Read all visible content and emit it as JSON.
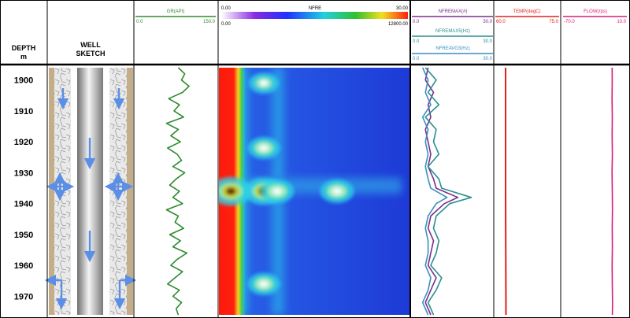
{
  "header": {
    "depth_label": "DEPTH",
    "depth_unit": "m",
    "well_label_1": "WELL",
    "well_label_2": "SKETCH"
  },
  "tracks": {
    "gr": {
      "name": "GR(API)",
      "min": "0.0",
      "max": "150.0",
      "color": "#2e8b2e"
    },
    "nfre": {
      "name": "NFRE",
      "scale_min": "0.00",
      "scale_max": "30.00",
      "range_min": "0.00",
      "range_max": "12800.00"
    },
    "nfremax": {
      "name": "NFREMAX(#)",
      "min": "0.0",
      "max": "30.0",
      "color": "#7b2d8e"
    },
    "nfremax5": {
      "name": "NFREMAX5(Hz)",
      "min": "0.0",
      "max": "30.0",
      "color": "#2a8f8f"
    },
    "nfreavg3": {
      "name": "NFREAVG3(Hz)",
      "min": "0.0",
      "max": "30.0",
      "color": "#3a8fc0"
    },
    "temp": {
      "name": "TEMP(degC)",
      "min": "60.0",
      "max": "75.0",
      "color": "#e0201b"
    },
    "flow": {
      "name": "FLOW(rps)",
      "min": "-70.0",
      "max": "10.0",
      "color": "#d81b7a"
    }
  },
  "chart_data": {
    "type": "line",
    "title": "",
    "ylabel": "DEPTH m",
    "depth_range": [
      1896,
      1976
    ],
    "depth_ticks": [
      1900,
      1910,
      1920,
      1930,
      1940,
      1950,
      1960,
      1970
    ],
    "series": [
      {
        "name": "GR(API)",
        "xlim": [
          0,
          150
        ],
        "depth": [
          1896,
          1898,
          1900,
          1902,
          1904,
          1906,
          1908,
          1910,
          1912,
          1914,
          1916,
          1918,
          1920,
          1922,
          1924,
          1926,
          1928,
          1930,
          1932,
          1934,
          1936,
          1938,
          1940,
          1942,
          1944,
          1946,
          1948,
          1950,
          1952,
          1954,
          1956,
          1958,
          1960,
          1962,
          1964,
          1966,
          1968,
          1970,
          1972,
          1974,
          1976
        ],
        "values": [
          80,
          92,
          86,
          100,
          88,
          62,
          82,
          72,
          90,
          58,
          80,
          66,
          84,
          60,
          78,
          86,
          70,
          92,
          76,
          64,
          82,
          70,
          88,
          58,
          80,
          74,
          90,
          64,
          84,
          70,
          96,
          78,
          66,
          88,
          74,
          60,
          82,
          70,
          86,
          76,
          80
        ]
      },
      {
        "name": "NFREMAX(#)",
        "xlim": [
          0,
          30
        ],
        "depth": [
          1896,
          1900,
          1904,
          1908,
          1912,
          1916,
          1920,
          1924,
          1928,
          1932,
          1935,
          1938,
          1940,
          1944,
          1948,
          1952,
          1956,
          1960,
          1964,
          1968,
          1972,
          1976
        ],
        "values": [
          6,
          5,
          8,
          6,
          7,
          5,
          6,
          7,
          6,
          8,
          9,
          17,
          12,
          7,
          6,
          8,
          7,
          6,
          9,
          7,
          5,
          7
        ]
      },
      {
        "name": "NFREMAX5(Hz)",
        "xlim": [
          0,
          30
        ],
        "depth": [
          1896,
          1900,
          1904,
          1908,
          1912,
          1916,
          1920,
          1924,
          1928,
          1932,
          1935,
          1938,
          1940,
          1944,
          1948,
          1952,
          1956,
          1960,
          1964,
          1968,
          1972,
          1976
        ],
        "values": [
          5,
          9,
          6,
          10,
          5,
          9,
          8,
          10,
          6,
          10,
          11,
          22,
          14,
          9,
          8,
          10,
          9,
          7,
          11,
          9,
          6,
          8
        ]
      },
      {
        "name": "NFREAVG3(Hz)",
        "xlim": [
          0,
          30
        ],
        "depth": [
          1896,
          1900,
          1904,
          1908,
          1912,
          1916,
          1920,
          1924,
          1928,
          1932,
          1935,
          1938,
          1940,
          1944,
          1948,
          1952,
          1956,
          1960,
          1964,
          1968,
          1972,
          1976
        ],
        "values": [
          4,
          6,
          5,
          7,
          4,
          6,
          5,
          6,
          5,
          6,
          7,
          13,
          9,
          6,
          5,
          6,
          6,
          5,
          7,
          6,
          4,
          6
        ]
      },
      {
        "name": "TEMP(degC)",
        "xlim": [
          60,
          75
        ],
        "depth": [
          1896,
          1936,
          1976
        ],
        "values": [
          62.4,
          62.4,
          62.5
        ]
      },
      {
        "name": "FLOW(rps)",
        "xlim": [
          -70,
          10
        ],
        "depth": [
          1896,
          1900,
          1906,
          1912,
          1918,
          1924,
          1930,
          1936,
          1942,
          1948,
          1954,
          1960,
          1966,
          1972,
          1976
        ],
        "values": [
          -8.5,
          -8.4,
          -8.6,
          -8.3,
          -8.5,
          -8.2,
          -8.6,
          -8.3,
          -8.1,
          -8.4,
          -8.2,
          -8.5,
          -8.3,
          -8.0,
          -8.2
        ]
      }
    ],
    "noise_map": {
      "type": "heatmap",
      "x_range": [
        0,
        12800
      ],
      "color_range": [
        0,
        30
      ],
      "hotspots": [
        {
          "depth": 1936,
          "frequency": 800,
          "level": 30
        },
        {
          "depth": 1936,
          "frequency": 3000,
          "level": 28
        },
        {
          "depth": 1936,
          "frequency": 3900,
          "level": 22
        },
        {
          "depth": 1936,
          "frequency": 7900,
          "level": 22
        },
        {
          "depth": 1922,
          "frequency": 3000,
          "level": 20
        },
        {
          "depth": 1966,
          "frequency": 3000,
          "level": 20
        },
        {
          "depth": 1901,
          "frequency": 3000,
          "level": 18
        }
      ]
    }
  }
}
